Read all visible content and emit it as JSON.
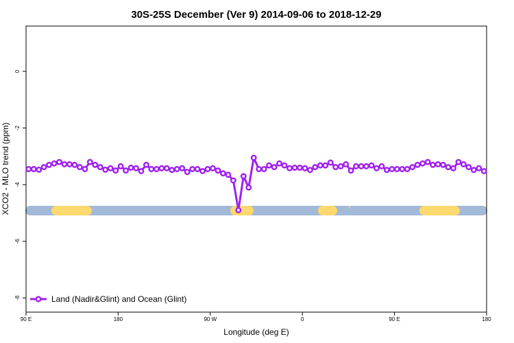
{
  "chart_data": {
    "type": "line",
    "title": "30S-25S December (Ver 9)   2014-09-06 to 2018-12-29",
    "xlabel": "Longitude (deg E)",
    "ylabel": "XCO2 - MLO trend (ppm)",
    "xlim": [
      90,
      540
    ],
    "ylim": [
      -8.5,
      1.6
    ],
    "xticks": [
      {
        "value": 90,
        "label": "90 E"
      },
      180,
      {
        "value": 270,
        "label": "90 W"
      },
      {
        "value": 360,
        "label": "0"
      },
      {
        "value": 450,
        "label": "90 E"
      },
      {
        "value": 540,
        "label": "180"
      }
    ],
    "yticks": [
      0,
      -2,
      -4,
      -6,
      -8
    ],
    "legend": "bottom-left",
    "x": [
      92.5,
      97.5,
      102.5,
      107.5,
      112.5,
      117.5,
      122.5,
      127.5,
      132.5,
      137.5,
      142.5,
      147.5,
      152.5,
      157.5,
      162.5,
      167.5,
      172.5,
      177.5,
      182.5,
      187.5,
      192.5,
      197.5,
      202.5,
      207.5,
      212.5,
      217.5,
      222.5,
      227.5,
      232.5,
      237.5,
      242.5,
      247.5,
      252.5,
      257.5,
      262.5,
      267.5,
      272.5,
      277.5,
      282.5,
      287.5,
      292.5,
      297.5,
      302.5,
      307.5,
      312.5,
      317.5,
      322.5,
      327.5,
      332.5,
      337.5,
      342.5,
      347.5,
      352.5,
      357.5,
      362.5,
      367.5,
      372.5,
      377.5,
      382.5,
      387.5,
      392.5,
      397.5,
      402.5,
      407.5,
      412.5,
      417.5,
      422.5,
      427.5,
      432.5,
      437.5,
      442.5,
      447.5,
      452.5,
      457.5,
      462.5,
      467.5,
      472.5,
      477.5,
      482.5,
      487.5,
      492.5,
      497.5,
      502.5,
      507.5,
      512.5,
      517.5,
      522.5,
      527.5,
      532.5,
      537.5
    ],
    "series": [
      {
        "name": "Land (Nadir&Glint) and Ocean (Glint)",
        "color": "#a020f0",
        "values": [
          -3.45,
          -3.45,
          -3.47,
          -3.38,
          -3.3,
          -3.25,
          -3.2,
          -3.28,
          -3.28,
          -3.3,
          -3.38,
          -3.45,
          -3.2,
          -3.3,
          -3.38,
          -3.47,
          -3.42,
          -3.5,
          -3.35,
          -3.5,
          -3.4,
          -3.42,
          -3.52,
          -3.3,
          -3.45,
          -3.45,
          -3.42,
          -3.42,
          -3.48,
          -3.45,
          -3.42,
          -3.55,
          -3.45,
          -3.45,
          -3.52,
          -3.45,
          -3.42,
          -3.5,
          -3.6,
          -3.65,
          -3.85,
          -4.9,
          -3.7,
          -4.1,
          -3.05,
          -3.45,
          -3.45,
          -3.32,
          -3.38,
          -3.25,
          -3.32,
          -3.42,
          -3.4,
          -3.4,
          -3.42,
          -3.48,
          -3.38,
          -3.32,
          -3.32,
          -3.22,
          -3.38,
          -3.35,
          -3.28,
          -3.5,
          -3.35,
          -3.35,
          -3.35,
          -3.32,
          -3.42,
          -3.35,
          -3.48,
          -3.45,
          -3.45,
          -3.45,
          -3.45,
          -3.38,
          -3.3,
          -3.25,
          -3.2,
          -3.3,
          -3.28,
          -3.3,
          -3.38,
          -3.42,
          -3.2,
          -3.28,
          -3.38,
          -3.48,
          -3.42,
          -3.52
        ]
      }
    ]
  }
}
